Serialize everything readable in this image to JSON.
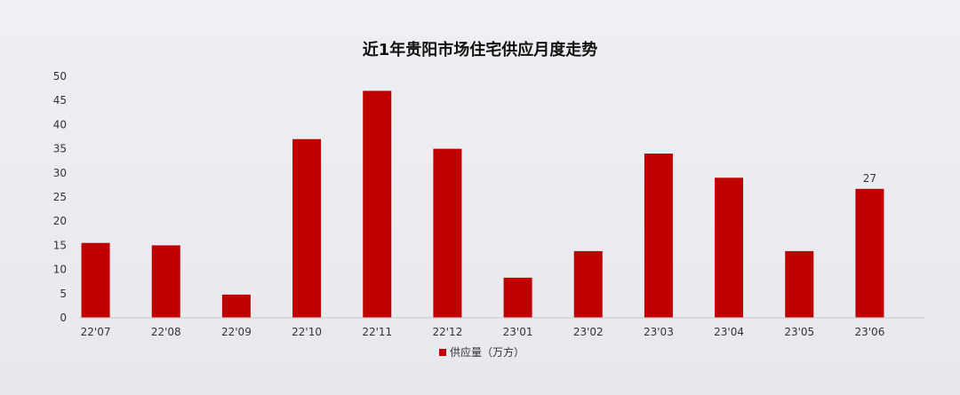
{
  "chart_data": {
    "type": "bar",
    "title": "近1年贵阳市场住宅供应月度走势",
    "categories": [
      "22'07",
      "22'08",
      "22'09",
      "22'10",
      "22'11",
      "22'12",
      "23'01",
      "23'02",
      "23'03",
      "23'04",
      "23'05",
      "23'06"
    ],
    "series": [
      {
        "name": "供应量（万方）",
        "values": [
          15.5,
          15,
          4.8,
          37,
          47,
          35,
          8.3,
          13.8,
          34,
          29,
          13.8,
          26.7
        ],
        "color": "#c00000"
      }
    ],
    "data_labels": [
      "",
      "",
      "",
      "",
      "",
      "",
      "",
      "",
      "",
      "",
      "",
      "27"
    ],
    "ylim": [
      0,
      50
    ],
    "yticks": [
      0,
      5,
      10,
      15,
      20,
      25,
      30,
      35,
      40,
      45,
      50
    ],
    "grid": false,
    "legend_position": "bottom"
  }
}
